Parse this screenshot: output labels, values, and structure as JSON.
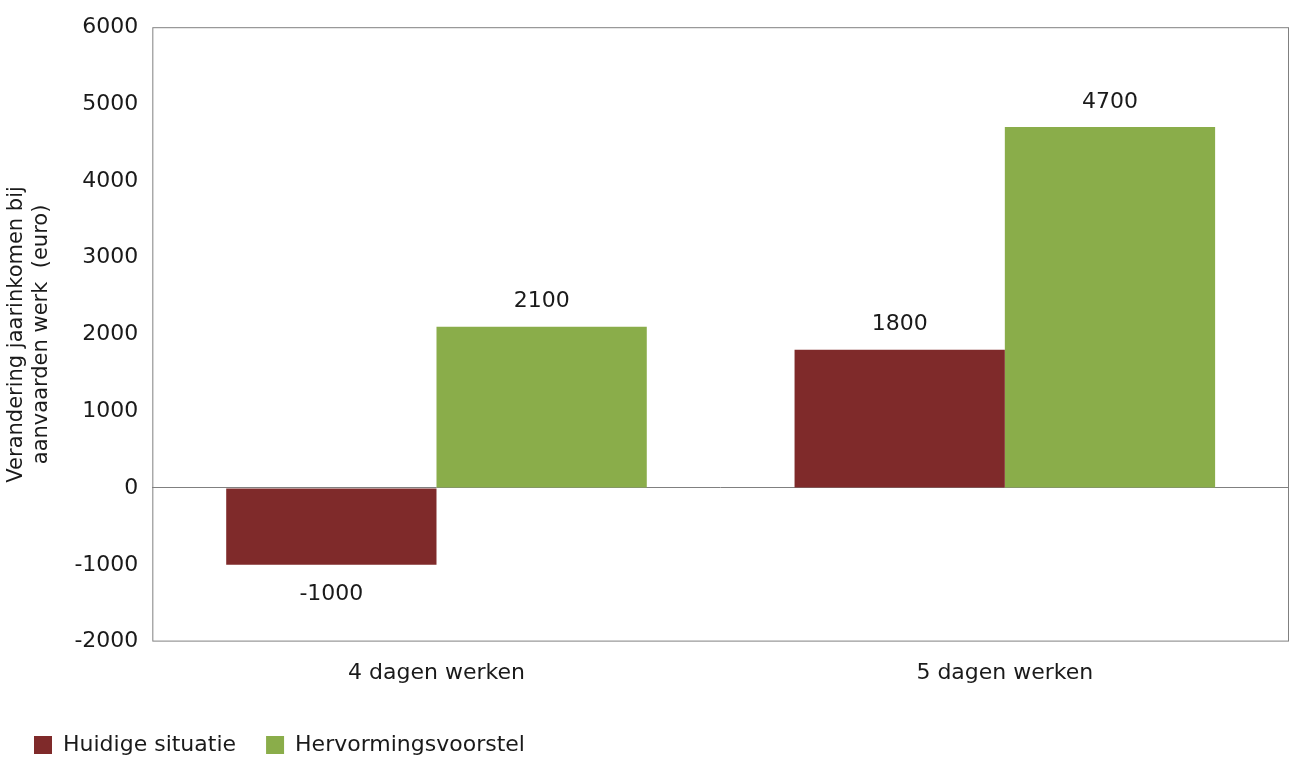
{
  "chart_data": {
    "type": "bar",
    "ylabel": [
      "Verandering jaarinkomen bij",
      "aanvaarden werk  (euro)"
    ],
    "categories": [
      "4 dagen werken",
      "5 dagen werken"
    ],
    "series": [
      {
        "name": "Huidige situatie",
        "color": "#7f2a2a",
        "values": [
          -1000,
          1800
        ]
      },
      {
        "name": "Hervormingsvoorstel",
        "color": "#8aad4a",
        "values": [
          2100,
          4700
        ]
      }
    ],
    "ylim": [
      -2000,
      6000
    ],
    "yticks": [
      -2000,
      -1000,
      0,
      1000,
      2000,
      3000,
      4000,
      5000,
      6000
    ],
    "grid": false,
    "legend": "bottom",
    "data_labels": true
  }
}
